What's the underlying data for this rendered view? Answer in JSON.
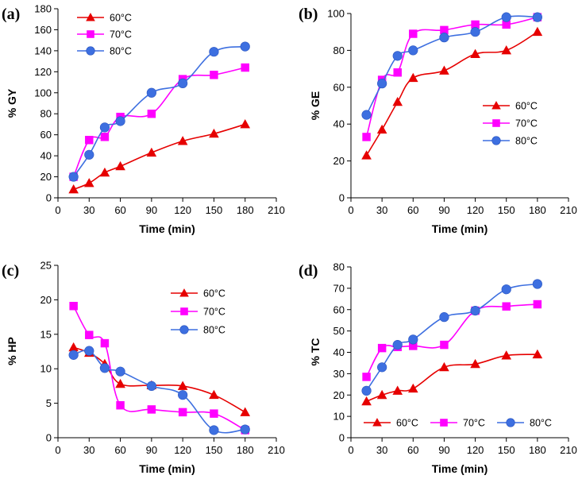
{
  "chart_data": [
    {
      "type": "line",
      "panel_label": "(a)",
      "xlabel": "Time (min)",
      "ylabel": "% GY",
      "xlim": [
        0,
        210
      ],
      "ylim": [
        0,
        180
      ],
      "xticks": [
        0,
        30,
        60,
        90,
        120,
        150,
        180,
        210
      ],
      "yticks": [
        0,
        20,
        40,
        60,
        80,
        100,
        120,
        140,
        160,
        180
      ],
      "legend_position": "top-left",
      "series": [
        {
          "name": "60°C",
          "color": "#e60000",
          "marker": "triangle",
          "x": [
            15,
            30,
            45,
            60,
            90,
            120,
            150,
            180
          ],
          "y": [
            8,
            14,
            24,
            30,
            43,
            54,
            61,
            70
          ]
        },
        {
          "name": "70°C",
          "color": "#ff00ff",
          "marker": "square",
          "x": [
            15,
            30,
            45,
            60,
            90,
            120,
            150,
            180
          ],
          "y": [
            20,
            55,
            58,
            77,
            80,
            113,
            117,
            124
          ]
        },
        {
          "name": "80°C",
          "color": "#3d6fe0",
          "marker": "circle",
          "x": [
            15,
            30,
            45,
            60,
            90,
            120,
            150,
            180
          ],
          "y": [
            20,
            41,
            67,
            73,
            100,
            109,
            139,
            144
          ]
        }
      ]
    },
    {
      "type": "line",
      "panel_label": "(b)",
      "xlabel": "Time (min)",
      "ylabel": "% GE",
      "xlim": [
        0,
        210
      ],
      "ylim": [
        0,
        100
      ],
      "xticks": [
        0,
        30,
        60,
        90,
        120,
        150,
        180,
        210
      ],
      "yticks": [
        0,
        20,
        40,
        60,
        80,
        100
      ],
      "legend_position": "right",
      "series": [
        {
          "name": "60°C",
          "color": "#e60000",
          "marker": "triangle",
          "x": [
            15,
            30,
            45,
            60,
            90,
            120,
            150,
            180
          ],
          "y": [
            23,
            37,
            52,
            65,
            69,
            78,
            80,
            90
          ]
        },
        {
          "name": "70°C",
          "color": "#ff00ff",
          "marker": "square",
          "x": [
            15,
            30,
            45,
            60,
            90,
            120,
            150,
            180
          ],
          "y": [
            33,
            64,
            68,
            89,
            91,
            94,
            94,
            98
          ]
        },
        {
          "name": "80°C",
          "color": "#3d6fe0",
          "marker": "circle",
          "x": [
            15,
            30,
            45,
            60,
            90,
            120,
            150,
            180
          ],
          "y": [
            45,
            62,
            77,
            80,
            87,
            90,
            98,
            98
          ]
        }
      ]
    },
    {
      "type": "line",
      "panel_label": "(c)",
      "xlabel": "Time (min)",
      "ylabel": "% HP",
      "xlim": [
        0,
        210
      ],
      "ylim": [
        0,
        25
      ],
      "xticks": [
        0,
        30,
        60,
        90,
        120,
        150,
        180,
        210
      ],
      "yticks": [
        0,
        5,
        10,
        15,
        20,
        25
      ],
      "legend_position": "top-right",
      "series": [
        {
          "name": "60°C",
          "color": "#e60000",
          "marker": "triangle",
          "x": [
            15,
            30,
            45,
            60,
            90,
            120,
            150,
            180
          ],
          "y": [
            13.1,
            12.3,
            10.7,
            7.8,
            7.6,
            7.5,
            6.2,
            3.7
          ]
        },
        {
          "name": "70°C",
          "color": "#ff00ff",
          "marker": "square",
          "x": [
            15,
            30,
            45,
            60,
            90,
            120,
            150,
            180
          ],
          "y": [
            19.1,
            14.9,
            13.7,
            4.7,
            4.1,
            3.7,
            3.5,
            1.1
          ]
        },
        {
          "name": "80°C",
          "color": "#3d6fe0",
          "marker": "circle",
          "x": [
            15,
            30,
            45,
            60,
            90,
            120,
            150,
            180
          ],
          "y": [
            12.0,
            12.6,
            10.1,
            9.6,
            7.5,
            6.2,
            1.1,
            1.2
          ]
        }
      ]
    },
    {
      "type": "line",
      "panel_label": "(d)",
      "xlabel": "Time (min)",
      "ylabel": "% TC",
      "xlim": [
        0,
        210
      ],
      "ylim": [
        0,
        80
      ],
      "xticks": [
        0,
        30,
        60,
        90,
        120,
        150,
        180,
        210
      ],
      "yticks": [
        0,
        10,
        20,
        30,
        40,
        50,
        60,
        70,
        80
      ],
      "legend_position": "bottom",
      "series": [
        {
          "name": "60°C",
          "color": "#e60000",
          "marker": "triangle",
          "x": [
            15,
            30,
            45,
            60,
            90,
            120,
            150,
            180
          ],
          "y": [
            17,
            20,
            22,
            23,
            33,
            34.5,
            38.5,
            39
          ]
        },
        {
          "name": "70°C",
          "color": "#ff00ff",
          "marker": "square",
          "x": [
            15,
            30,
            45,
            60,
            90,
            120,
            150,
            180
          ],
          "y": [
            28.5,
            42,
            42.5,
            43,
            43.5,
            59.5,
            61.5,
            62.5
          ]
        },
        {
          "name": "80°C",
          "color": "#3d6fe0",
          "marker": "circle",
          "x": [
            15,
            30,
            45,
            60,
            90,
            120,
            150,
            180
          ],
          "y": [
            22,
            33,
            43.5,
            46,
            56.5,
            59.5,
            69.5,
            72
          ]
        }
      ]
    }
  ]
}
